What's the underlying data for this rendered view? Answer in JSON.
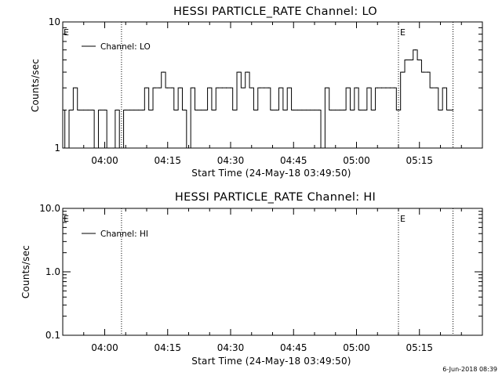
{
  "chart_data": [
    {
      "type": "line",
      "title": "HESSI PARTICLE_RATE Channel: LO",
      "xlabel": "Start Time (24-May-18 03:49:50)",
      "ylabel": "Counts/sec",
      "y_scale": "log",
      "ylim": [
        1,
        10
      ],
      "y_ticks": [
        "1",
        "10"
      ],
      "xlim": [
        "03:50",
        "05:30"
      ],
      "x_ticks": [
        "04:00",
        "04:15",
        "04:30",
        "04:45",
        "05:00",
        "05:15"
      ],
      "legend": {
        "placement": "top-left",
        "entries": [
          "Channel: LO"
        ]
      },
      "grid": false,
      "event_lines": [
        "04:04",
        "05:10",
        "05:23"
      ],
      "event_markers": [
        "E",
        "E"
      ],
      "series": [
        {
          "name": "Channel: LO",
          "x": [
            "03:50",
            "03:51",
            "03:52",
            "03:53",
            "03:54",
            "03:55",
            "03:56",
            "03:57",
            "03:58",
            "03:59",
            "04:00",
            "04:01",
            "04:02",
            "04:03",
            "04:04",
            "04:05",
            "04:06",
            "04:07",
            "04:08",
            "04:09",
            "04:10",
            "04:11",
            "04:12",
            "04:13",
            "04:14",
            "04:15",
            "04:16",
            "04:17",
            "04:18",
            "04:19",
            "04:20",
            "04:21",
            "04:22",
            "04:23",
            "04:24",
            "04:25",
            "04:26",
            "04:27",
            "04:28",
            "04:29",
            "04:30",
            "04:31",
            "04:32",
            "04:33",
            "04:34",
            "04:35",
            "04:36",
            "04:37",
            "04:38",
            "04:39",
            "04:40",
            "04:41",
            "04:42",
            "04:43",
            "04:44",
            "04:45",
            "04:46",
            "04:47",
            "04:48",
            "04:49",
            "04:50",
            "04:51",
            "04:52",
            "04:53",
            "04:54",
            "04:55",
            "04:56",
            "04:57",
            "04:58",
            "04:59",
            "05:00",
            "05:01",
            "05:02",
            "05:03",
            "05:04",
            "05:05",
            "05:06",
            "05:07",
            "05:08",
            "05:09",
            "05:10",
            "05:11",
            "05:12",
            "05:13",
            "05:14",
            "05:15",
            "05:16",
            "05:17",
            "05:18",
            "05:19",
            "05:20",
            "05:21",
            "05:22",
            "05:23"
          ],
          "y": [
            2,
            1,
            2,
            3,
            2,
            2,
            2,
            2,
            1,
            2,
            2,
            1,
            1,
            2,
            1,
            2,
            2,
            2,
            2,
            2,
            3,
            2,
            3,
            3,
            4,
            3,
            3,
            2,
            3,
            2,
            1,
            3,
            2,
            2,
            2,
            3,
            2,
            3,
            3,
            3,
            3,
            2,
            4,
            3,
            4,
            3,
            2,
            3,
            3,
            3,
            2,
            2,
            3,
            2,
            3,
            2,
            2,
            2,
            2,
            2,
            2,
            2,
            1,
            3,
            2,
            2,
            2,
            2,
            3,
            2,
            3,
            2,
            2,
            3,
            2,
            3,
            3,
            3,
            3,
            3,
            2,
            4,
            5,
            5,
            6,
            5,
            4,
            4,
            3,
            3,
            2,
            3,
            2,
            2
          ]
        }
      ]
    },
    {
      "type": "line",
      "title": "HESSI PARTICLE_RATE Channel: HI",
      "xlabel": "Start Time (24-May-18 03:49:50)",
      "ylabel": "Counts/sec",
      "y_scale": "log",
      "ylim": [
        0.1,
        10
      ],
      "y_ticks": [
        "0.1",
        "1.0",
        "10.0"
      ],
      "xlim": [
        "03:50",
        "05:30"
      ],
      "x_ticks": [
        "04:00",
        "04:15",
        "04:30",
        "04:45",
        "05:00",
        "05:15"
      ],
      "legend": {
        "placement": "top-left",
        "entries": [
          "Channel: HI"
        ]
      },
      "grid": false,
      "event_lines": [
        "04:04",
        "05:10",
        "05:23"
      ],
      "event_markers": [
        "E",
        "E"
      ],
      "series": [
        {
          "name": "Channel: HI",
          "x": [],
          "y": []
        }
      ]
    }
  ],
  "footer": {
    "timestamp": "6-Jun-2018 08:39"
  },
  "colors": {
    "background": "#ffffff",
    "foreground": "#000000"
  }
}
